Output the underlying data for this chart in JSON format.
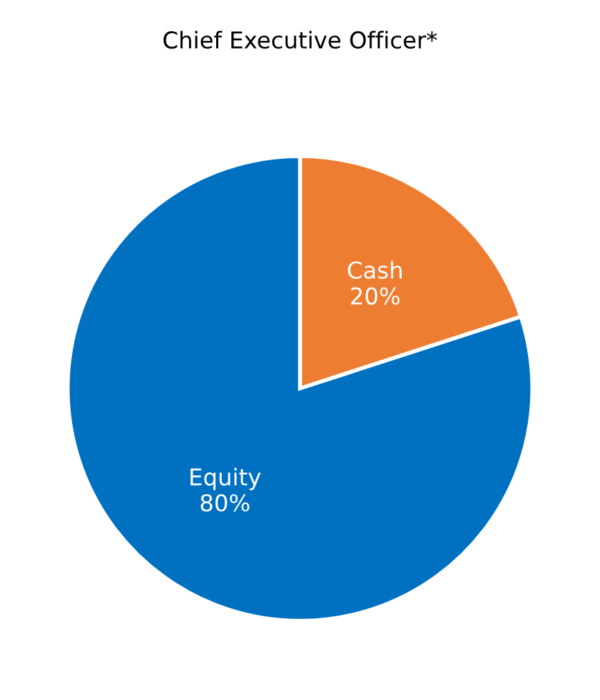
{
  "chart_data": {
    "type": "pie",
    "title": "Chief Executive Officer*",
    "categories": [
      "Cash",
      "Equity"
    ],
    "values": [
      20,
      80
    ],
    "value_labels": [
      "20%",
      "80%"
    ],
    "colors": [
      "#ed7d31",
      "#0070c0"
    ]
  }
}
